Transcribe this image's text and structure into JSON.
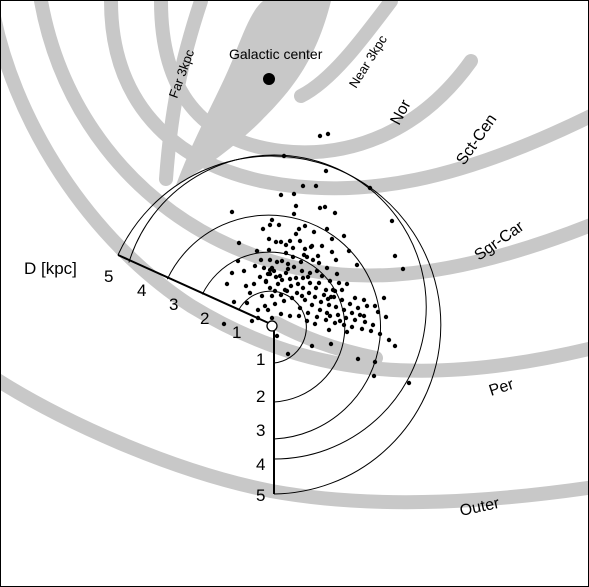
{
  "galactic_center": {
    "label": "Galactic center"
  },
  "arms": {
    "far3kpc": "Far 3kpc",
    "near3kpc": "Near 3kpc",
    "nor": "Nor",
    "sctcen": "Sct-Cen",
    "sgrcar": "Sgr-Car",
    "per": "Per",
    "outer": "Outer"
  },
  "distance_axis": {
    "label": "D [kpc]",
    "ticks": [
      "1",
      "2",
      "3",
      "4",
      "5"
    ]
  },
  "colors": {
    "arm": "#c8c8c8",
    "ink": "#000000"
  },
  "sources": [
    [
      -22,
      33
    ],
    [
      -11,
      66
    ],
    [
      -2,
      56
    ],
    [
      24,
      92
    ],
    [
      18,
      85
    ],
    [
      33,
      77
    ],
    [
      35,
      69
    ],
    [
      45,
      55
    ],
    [
      50,
      80
    ],
    [
      60,
      74
    ],
    [
      48,
      118
    ],
    [
      53,
      119
    ],
    [
      42,
      94
    ],
    [
      39,
      79
    ],
    [
      -3,
      76
    ],
    [
      -9,
      97
    ],
    [
      -2,
      101
    ],
    [
      7,
      101
    ],
    [
      9,
      84
    ],
    [
      4,
      84
    ],
    [
      14,
      81
    ],
    [
      27,
      97
    ],
    [
      29,
      64
    ],
    [
      24,
      48
    ],
    [
      -33,
      83
    ],
    [
      -15,
      75
    ],
    [
      -2,
      66
    ],
    [
      5,
      64
    ],
    [
      14,
      73
    ],
    [
      21,
      69
    ],
    [
      38,
      53
    ],
    [
      47,
      43
    ],
    [
      54,
      36
    ],
    [
      59,
      29
    ],
    [
      63,
      35
    ],
    [
      67,
      43
    ],
    [
      61,
      36
    ],
    [
      75,
      42
    ],
    [
      40,
      80
    ],
    [
      22,
      112
    ],
    [
      -2,
      52
    ],
    [
      -8,
      58
    ],
    [
      2,
      55
    ],
    [
      16,
      57
    ],
    [
      28,
      85
    ],
    [
      55,
      97
    ],
    [
      60,
      87
    ],
    [
      47,
      63
    ],
    [
      -34,
      65
    ],
    [
      0,
      58
    ],
    [
      4,
      49
    ],
    [
      6,
      42
    ],
    [
      10,
      46
    ],
    [
      14,
      53
    ],
    [
      22,
      59
    ],
    [
      30,
      55
    ],
    [
      36,
      49
    ],
    [
      44,
      38
    ],
    [
      52,
      31
    ],
    [
      56,
      27
    ],
    [
      62,
      29
    ],
    [
      70,
      26
    ],
    [
      78,
      22
    ],
    [
      86,
      18
    ],
    [
      -6,
      45
    ],
    [
      -2,
      38
    ],
    [
      3,
      35
    ],
    [
      9,
      31
    ],
    [
      13,
      36
    ],
    [
      19,
      40
    ],
    [
      26,
      42
    ],
    [
      31,
      38
    ],
    [
      37,
      33
    ],
    [
      43,
      29
    ],
    [
      49,
      24
    ],
    [
      57,
      21
    ],
    [
      64,
      19
    ],
    [
      72,
      16
    ],
    [
      80,
      13
    ],
    [
      88,
      11
    ],
    [
      -12,
      49
    ],
    [
      -6,
      44
    ],
    [
      -4,
      52
    ],
    [
      8,
      50
    ],
    [
      18,
      47
    ],
    [
      25,
      33
    ],
    [
      33,
      26
    ],
    [
      40,
      21
    ],
    [
      48,
      16
    ],
    [
      55,
      13
    ],
    [
      66,
      11
    ],
    [
      74,
      8
    ],
    [
      83,
      6
    ],
    [
      93,
      4
    ],
    [
      101,
      1
    ],
    [
      -17,
      60
    ],
    [
      10,
      65
    ],
    [
      16,
      62
    ],
    [
      21,
      78
    ],
    [
      32,
      71
    ],
    [
      41,
      66
    ],
    [
      50,
      50
    ],
    [
      58,
      45
    ],
    [
      70,
      36
    ],
    [
      83,
      28
    ],
    [
      95,
      20
    ],
    [
      106,
      14
    ],
    [
      114,
      9
    ],
    [
      -25,
      23
    ],
    [
      -14,
      16
    ],
    [
      -7,
      20
    ],
    [
      3,
      22
    ],
    [
      12,
      25
    ],
    [
      20,
      28
    ],
    [
      28,
      18
    ],
    [
      36,
      13
    ],
    [
      45,
      9
    ],
    [
      54,
      6
    ],
    [
      63,
      3
    ],
    [
      72,
      1
    ],
    [
      80,
      -1
    ],
    [
      90,
      -3
    ],
    [
      99,
      -5
    ],
    [
      108,
      -8
    ],
    [
      117,
      -14
    ],
    [
      123,
      -20
    ],
    [
      86,
      -33
    ],
    [
      103,
      -36
    ],
    [
      102,
      -50
    ],
    [
      137,
      -57
    ],
    [
      12,
      170
    ],
    [
      123,
      70
    ],
    [
      120,
      105
    ],
    [
      98,
      138
    ],
    [
      131,
      57
    ],
    [
      92,
      26
    ],
    [
      -38,
      24
    ],
    [
      -45,
      42
    ],
    [
      -20,
      5
    ],
    [
      -48,
      2
    ],
    [
      18,
      10
    ],
    [
      35,
      5
    ],
    [
      72,
      90
    ],
    [
      85,
      61
    ],
    [
      65,
      52
    ],
    [
      24,
      120
    ],
    [
      44,
      140
    ],
    [
      -40,
      114
    ],
    [
      0,
      106
    ],
    [
      9,
      131
    ],
    [
      -3,
      87
    ],
    [
      77,
      75
    ],
    [
      -18,
      42
    ],
    [
      -10,
      30
    ],
    [
      58,
      10
    ],
    [
      68,
      5
    ],
    [
      -26,
      40
    ],
    [
      0,
      30
    ],
    [
      46,
      70
    ],
    [
      64,
      66
    ],
    [
      30,
      30
    ],
    [
      38,
      43
    ],
    [
      55,
      58
    ],
    [
      27,
      10
    ],
    [
      43,
      2
    ],
    [
      57,
      -4
    ],
    [
      75,
      -6
    ],
    [
      92,
      10
    ],
    [
      103,
      20
    ],
    [
      112,
      28
    ],
    [
      -28,
      55
    ],
    [
      15,
      35
    ],
    [
      31,
      48
    ],
    [
      5,
      -10
    ],
    [
      16,
      -28
    ],
    [
      40,
      -20
    ],
    [
      59,
      -18
    ],
    [
      -4,
      16
    ],
    [
      0,
      8
    ],
    [
      9,
      12
    ],
    [
      -14,
      8
    ],
    [
      -40,
      53
    ],
    [
      22,
      132
    ],
    [
      33,
      100
    ],
    [
      54,
      155
    ],
    [
      48,
      190
    ],
    [
      56,
      192
    ],
    [
      31,
      140
    ],
    [
      63,
      113
    ]
  ]
}
